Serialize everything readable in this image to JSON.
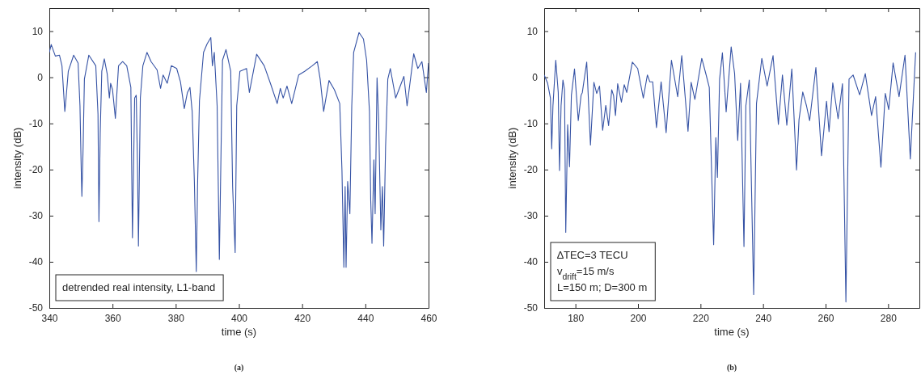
{
  "chart_data": [
    {
      "type": "line",
      "xlabel": "time (s)",
      "ylabel": "intensity (dB)",
      "xlim": [
        340,
        460
      ],
      "ylim": [
        -50,
        15
      ],
      "xticks": [
        340,
        360,
        380,
        400,
        420,
        440,
        460
      ],
      "yticks": [
        -50,
        -40,
        -30,
        -20,
        -10,
        0,
        10
      ],
      "grid": false,
      "marker": "none",
      "line_style": "solid",
      "annotations": [
        "detrended real intensity, L1-band",
        "(a)"
      ],
      "series": [
        {
          "color": "#3653a5",
          "x": [
            340,
            340.6,
            341.9,
            343.2,
            344.0,
            344.9,
            345.3,
            346.0,
            347.7,
            349.1,
            349.7,
            350.1,
            350.3,
            350.7,
            351.1,
            352.5,
            354.7,
            355.4,
            355.7,
            356.1,
            356.6,
            357.4,
            358.3,
            359.0,
            359.4,
            360.0,
            360.9,
            361.9,
            363.2,
            364.5,
            365.8,
            366.3,
            367.0,
            367.5,
            367.9,
            368.2,
            368.8,
            369.6,
            370.9,
            372.2,
            374.1,
            375.2,
            376.0,
            377.3,
            378.6,
            380.3,
            381.5,
            382.7,
            383.7,
            384.5,
            385.2,
            385.9,
            386.5,
            386.9,
            387.5,
            388.8,
            389.9,
            391.1,
            391.6,
            392.2,
            393.1,
            393.8,
            394.4,
            394.8,
            395.9,
            397.4,
            398.0,
            398.8,
            399.3,
            400.3,
            402.4,
            403.3,
            405.6,
            408.0,
            410.1,
            412.1,
            413.1,
            414.0,
            415.2,
            416.7,
            418.9,
            420.8,
            423.2,
            424.8,
            425.7,
            426.8,
            428.5,
            430.2,
            431.9,
            432.6,
            433.2,
            433.6,
            433.9,
            434.4,
            435.1,
            435.7,
            436.3,
            438.0,
            439.4,
            440.4,
            441.3,
            441.7,
            442.1,
            442.7,
            443.1,
            443.7,
            444.2,
            444.9,
            445.4,
            445.8,
            446.4,
            447.1,
            447.9,
            449.6,
            450.6,
            452.2,
            453.2,
            455.3,
            456.6,
            457.9,
            459.3,
            460
          ],
          "values": [
            5.4,
            7.1,
            4.6,
            4.8,
            2.5,
            -7.4,
            -4.5,
            1.3,
            4.8,
            3.1,
            -6.2,
            -20.2,
            -25.8,
            -15.0,
            -0.4,
            4.8,
            2.5,
            -8.0,
            -31.3,
            -12.1,
            1.3,
            4.0,
            0.8,
            -4.5,
            -1.3,
            -2.7,
            -8.9,
            2.5,
            3.4,
            2.5,
            -2.2,
            -34.8,
            -4.5,
            -3.9,
            -19.1,
            -36.6,
            -4.5,
            2.5,
            5.4,
            3.4,
            1.6,
            -2.4,
            0.5,
            -1.3,
            2.5,
            1.9,
            -1.0,
            -6.8,
            -3.3,
            -2.2,
            -7.4,
            -22.6,
            -42.1,
            -23.7,
            -5.1,
            5.4,
            7.2,
            8.6,
            2.5,
            5.4,
            -6.2,
            -39.5,
            -13.2,
            3.7,
            6.0,
            1.3,
            -23.7,
            -38.0,
            -6.2,
            1.3,
            1.9,
            -3.3,
            5.0,
            2.5,
            -1.6,
            -5.7,
            -2.4,
            -4.5,
            -1.9,
            -5.7,
            0.5,
            1.3,
            2.5,
            3.4,
            -0.4,
            -7.4,
            -0.7,
            -2.7,
            -5.7,
            -20.2,
            -41.2,
            -23.7,
            -41.2,
            -22.6,
            -29.6,
            -6.2,
            5.4,
            9.7,
            8.3,
            3.7,
            -7.4,
            -26.6,
            -36.0,
            -17.9,
            -29.6,
            -0.1,
            -9.2,
            -33.1,
            -23.7,
            -36.6,
            -15.0,
            -0.4,
            1.9,
            -4.5,
            -2.7,
            0.2,
            -6.2,
            5.1,
            1.9,
            3.4,
            -3.3,
            3.1
          ]
        }
      ]
    },
    {
      "type": "line",
      "xlabel": "time (s)",
      "ylabel": "intensity (dB)",
      "xlim": [
        170,
        290
      ],
      "ylim": [
        -50,
        15
      ],
      "xticks": [
        180,
        200,
        220,
        240,
        260,
        280
      ],
      "yticks": [
        -50,
        -40,
        -30,
        -20,
        -10,
        0,
        10
      ],
      "grid": false,
      "marker": "none",
      "line_style": "solid",
      "annotations": [
        "∆TEC=3 TECU",
        "v$_{drift}$=15 m/s",
        "L=150 m; D=300 m",
        "(b)"
      ],
      "series": [
        {
          "color": "#3653a5",
          "x": [
            170.0,
            171.1,
            172.0,
            172.4,
            172.8,
            173.7,
            174.5,
            174.9,
            175.4,
            176.0,
            176.5,
            176.9,
            177.5,
            178.1,
            178.7,
            179.7,
            180.9,
            181.8,
            182.2,
            183.6,
            184.8,
            185.9,
            186.8,
            187.7,
            188.7,
            189.7,
            190.6,
            191.6,
            192.2,
            192.8,
            193.5,
            194.7,
            195.6,
            196.4,
            198.2,
            199.9,
            201.7,
            203.0,
            203.8,
            204.7,
            205.9,
            207.4,
            209.0,
            210.7,
            212.7,
            214.0,
            216.0,
            217.0,
            218.2,
            220.4,
            221.8,
            222.8,
            224.2,
            224.9,
            225.4,
            226.1,
            227.0,
            228.2,
            229.8,
            230.9,
            231.9,
            232.8,
            233.9,
            234.5,
            235.6,
            237.0,
            237.9,
            239.6,
            241.3,
            243.2,
            244.9,
            246.2,
            247.6,
            249.2,
            250.7,
            251.5,
            252.7,
            253.9,
            254.9,
            256.9,
            258.7,
            260.3,
            261.1,
            262.3,
            264.0,
            265.4,
            266.5,
            267.5,
            268.8,
            270.9,
            272.7,
            274.7,
            276.0,
            277.7,
            279.1,
            280.2,
            281.6,
            283.5,
            285.4,
            287.1,
            288.8
          ],
          "values": [
            0.5,
            -1.3,
            -4.5,
            -15.5,
            -6.2,
            3.7,
            -3.3,
            -20.2,
            -6.2,
            -0.6,
            -2.7,
            -33.6,
            -10.3,
            -19.4,
            -3.9,
            1.8,
            -9.4,
            -3.9,
            -3.3,
            3.3,
            -14.7,
            -1.1,
            -3.5,
            -1.9,
            -11.5,
            -6.1,
            -10.5,
            -2.7,
            -4.0,
            -8.3,
            -1.4,
            -5.4,
            -1.6,
            -3.3,
            3.3,
            1.9,
            -4.5,
            0.5,
            -1.0,
            -1.0,
            -10.9,
            -1.0,
            -12.0,
            3.7,
            -4.2,
            4.7,
            -11.7,
            -1.1,
            -4.8,
            4.1,
            0.5,
            -2.2,
            -36.3,
            -13.1,
            -21.7,
            -0.4,
            5.3,
            -7.5,
            6.6,
            0.8,
            -13.7,
            -1.3,
            -36.7,
            -6.2,
            -0.6,
            -47.1,
            -5.7,
            4.1,
            -1.9,
            4.7,
            -10.2,
            0.5,
            -10.4,
            1.8,
            -20.1,
            -9.2,
            -3.2,
            -6.2,
            -9.4,
            2.1,
            -17.0,
            -5.2,
            -11.8,
            -1.2,
            -9.0,
            -1.4,
            -48.7,
            -0.4,
            0.5,
            -3.8,
            0.8,
            -8.3,
            -4.2,
            -19.5,
            -3.5,
            -7.0,
            3.1,
            -4.2,
            4.8,
            -17.7,
            5.4
          ]
        }
      ]
    }
  ]
}
